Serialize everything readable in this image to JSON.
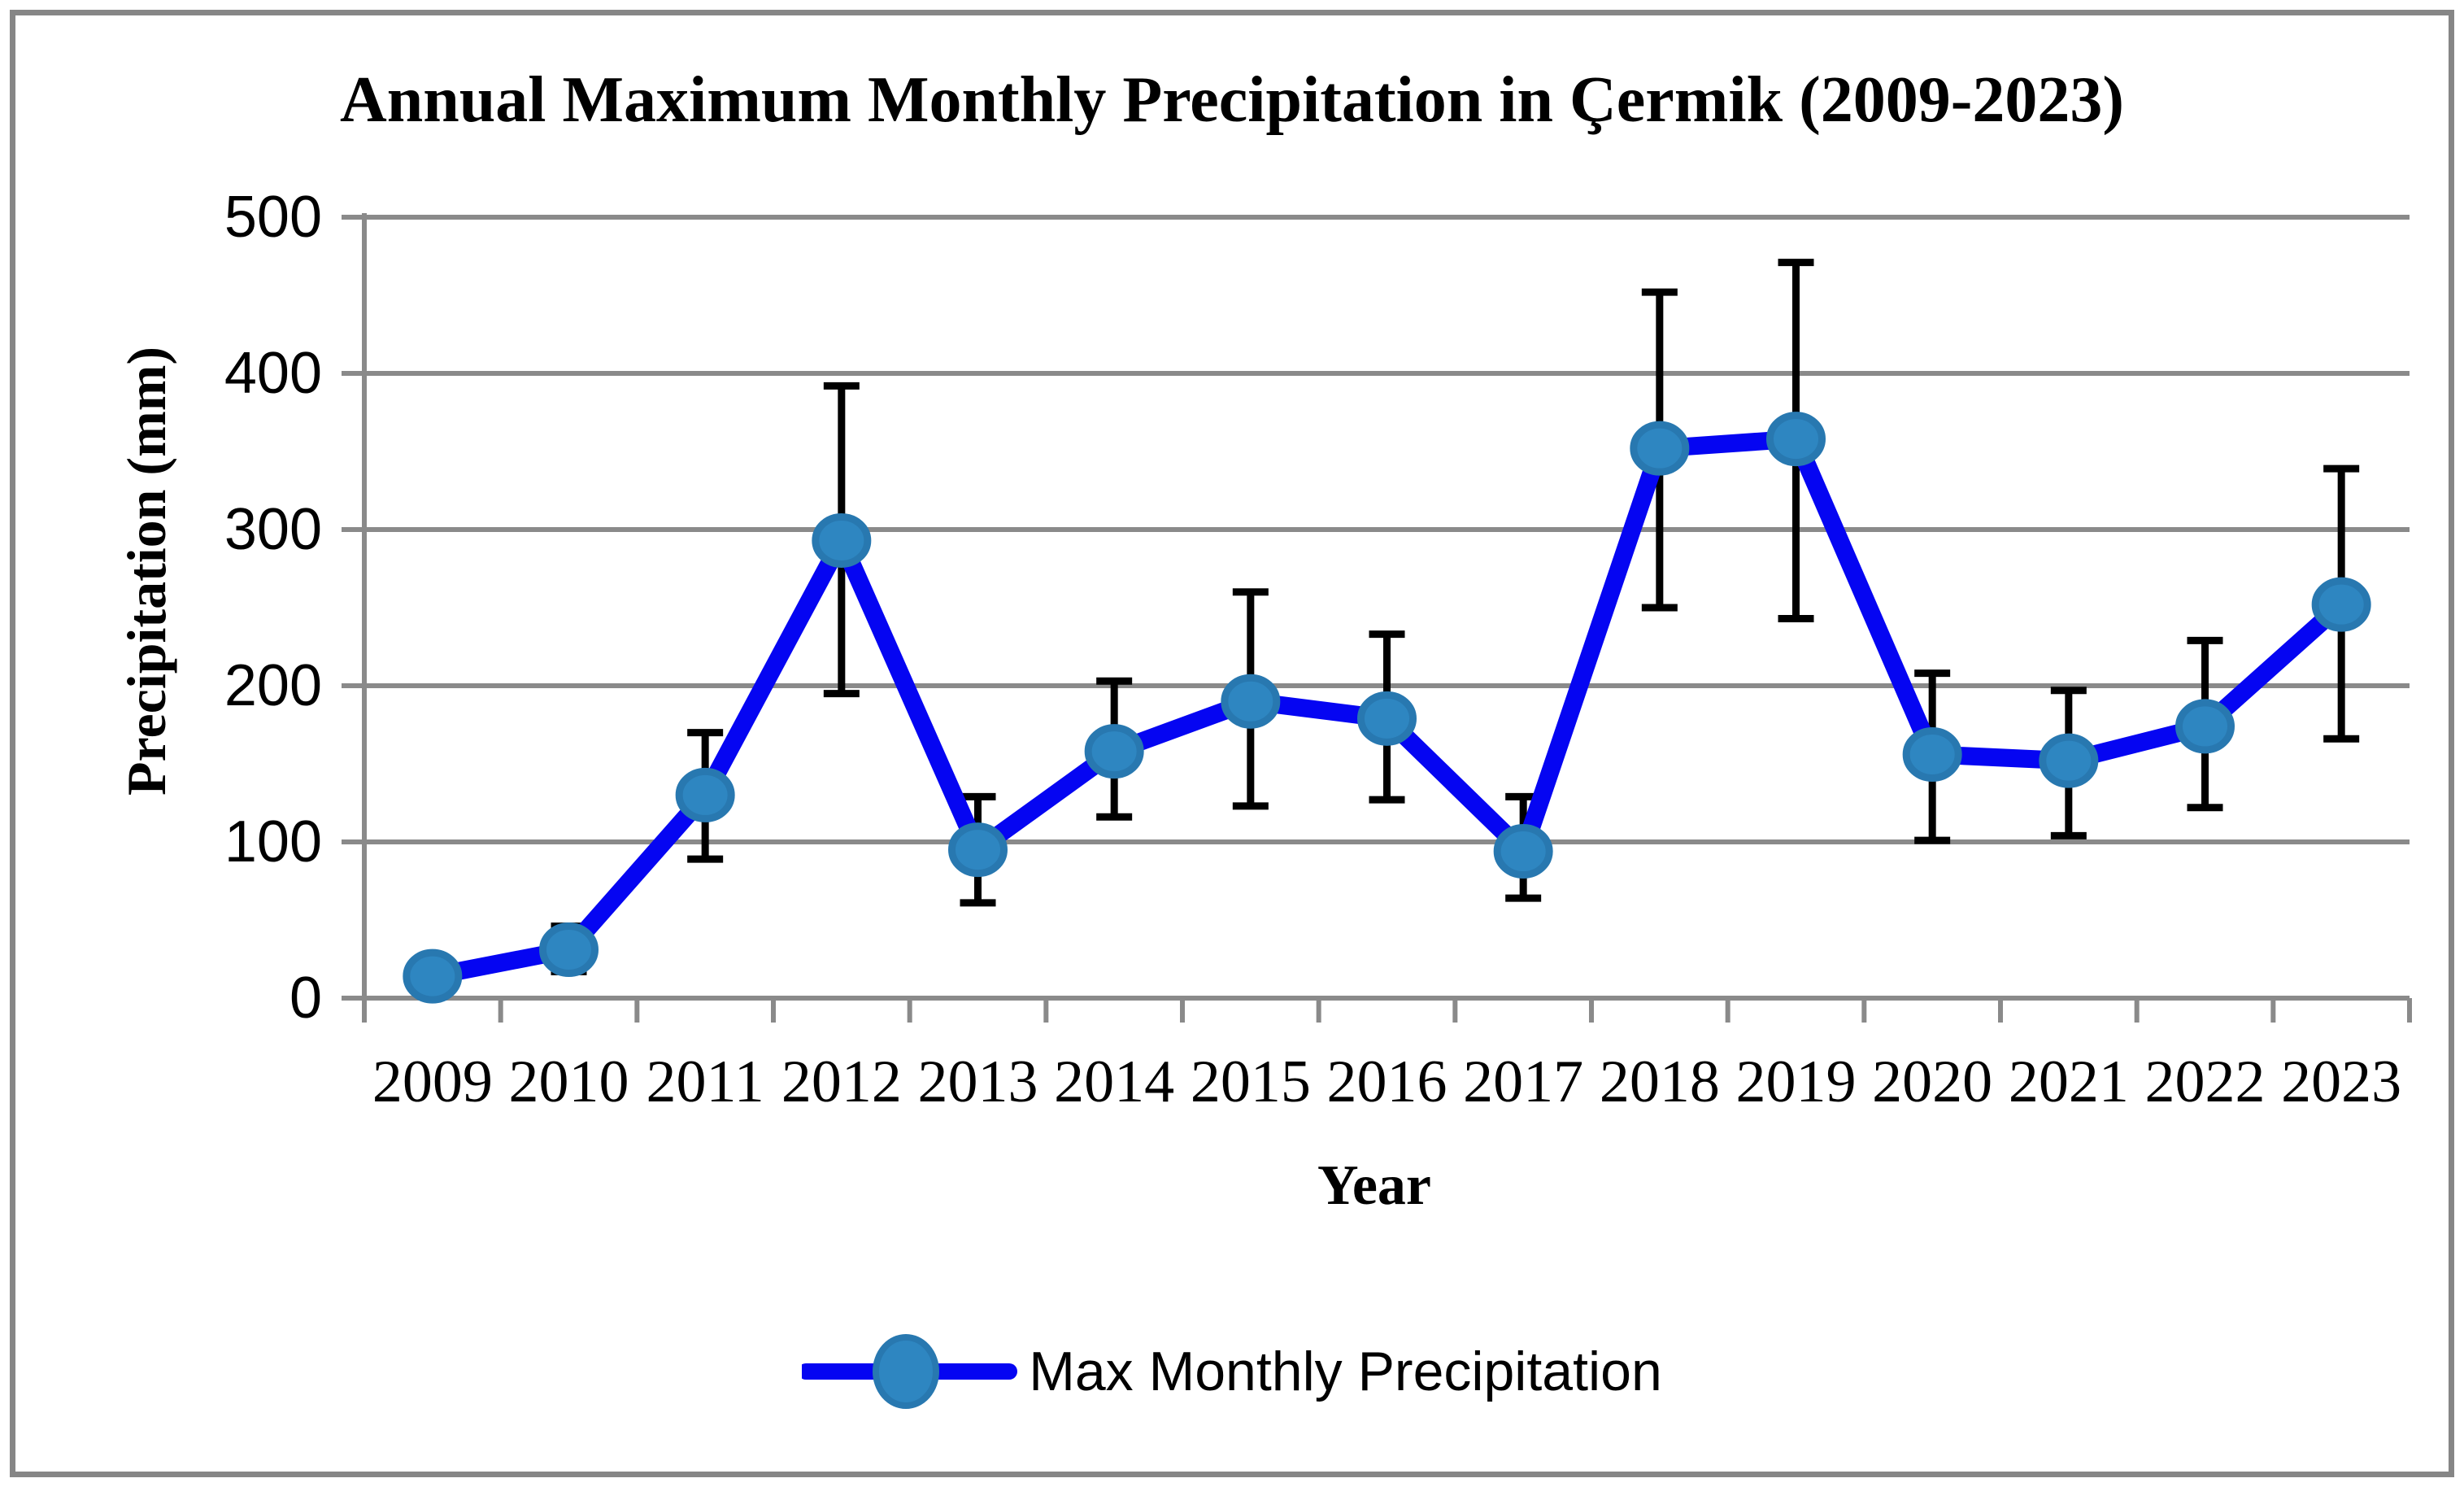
{
  "title": "Annual Maximum Monthly Precipitation in Çermik (2009-2023)",
  "x_axis": {
    "label": "Year"
  },
  "y_axis": {
    "label": "Precipitation (mm)"
  },
  "legend": {
    "label": "Max Monthly Precipitation"
  },
  "colors": {
    "line": "#0505f2",
    "marker_fill": "#2e86c1",
    "marker_edge": "#2878b0",
    "error_bar": "#000000",
    "grid": "#8a8a8a",
    "axis": "#8a8a8a",
    "border": "#868686",
    "text": "#000000"
  },
  "chart_data": {
    "type": "line",
    "title": "Annual Maximum Monthly Precipitation in Çermik (2009-2023)",
    "xlabel": "Year",
    "ylabel": "Precipitation (mm)",
    "ylim": [
      0,
      500
    ],
    "y_ticks": [
      0,
      100,
      200,
      300,
      400,
      500
    ],
    "grid": "horizontal",
    "legend_position": "bottom",
    "categories": [
      "2009",
      "2010",
      "2011",
      "2012",
      "2013",
      "2014",
      "2015",
      "2016",
      "2017",
      "2018",
      "2019",
      "2020",
      "2021",
      "2022",
      "2023"
    ],
    "series": [
      {
        "name": "Max Monthly Precipitation",
        "marker": "circle",
        "error_bars": true,
        "values": [
          14,
          31,
          130,
          293,
          95,
          158,
          190,
          179,
          94,
          352,
          358,
          156,
          152,
          174,
          252
        ],
        "error_low": [
          null,
          17,
          89,
          195,
          61,
          116,
          123,
          127,
          64,
          250,
          243,
          101,
          104,
          122,
          166
        ],
        "error_high": [
          null,
          46,
          170,
          392,
          129,
          203,
          260,
          233,
          129,
          452,
          471,
          208,
          197,
          229,
          339
        ]
      }
    ]
  }
}
